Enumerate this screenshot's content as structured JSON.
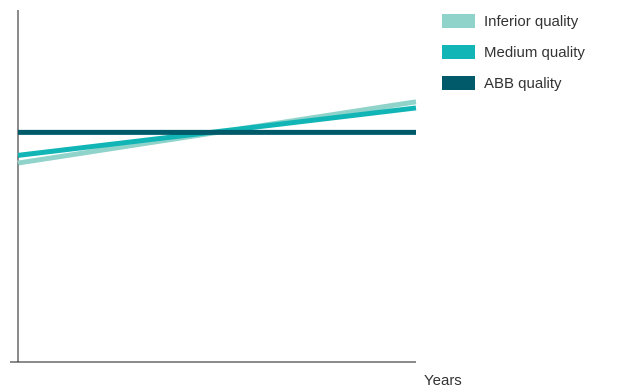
{
  "chart_data": {
    "type": "line",
    "title": "",
    "xlabel": "Years",
    "ylabel": "",
    "grid": false,
    "legend_position": "top-right",
    "x": [
      0,
      1
    ],
    "series": [
      {
        "name": "Inferior quality",
        "values": [
          0.6,
          1.0
        ],
        "color": "#8fd3ca"
      },
      {
        "name": "Medium quality",
        "values": [
          0.65,
          0.96
        ],
        "color": "#11b5b5"
      },
      {
        "name": "ABB quality",
        "values": [
          0.8,
          0.8
        ],
        "color": "#005a6a"
      }
    ],
    "xlim": [
      0,
      1
    ],
    "ylim": [
      -0.7,
      1.6
    ]
  }
}
